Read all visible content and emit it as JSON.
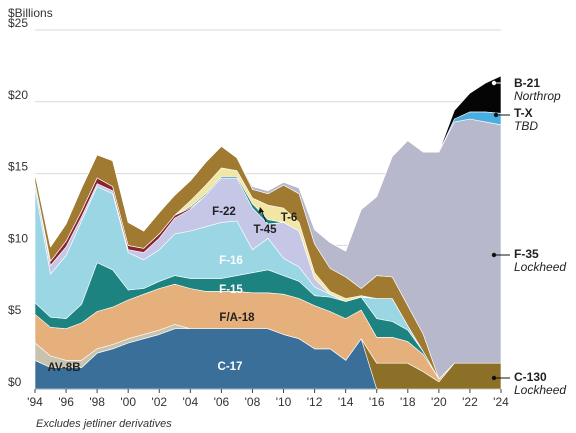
{
  "chart_data": {
    "type": "area",
    "stacked": true,
    "unit_label": "$Billions",
    "note": "Excludes jetliner derivatives",
    "ylim": [
      0,
      25
    ],
    "y_ticks": [
      "$0",
      "$5",
      "$10",
      "$15",
      "$20",
      "$25"
    ],
    "x_ticks": [
      "'94",
      "'96",
      "'98",
      "'00",
      "'02",
      "'04",
      "'06",
      "'08",
      "'10",
      "'12",
      "'14",
      "'16",
      "'18",
      "'20",
      "'22",
      "'24"
    ],
    "x_tick_years": [
      1994,
      1996,
      1998,
      2000,
      2002,
      2004,
      2006,
      2008,
      2010,
      2012,
      2014,
      2016,
      2018,
      2020,
      2022,
      2024
    ],
    "x": [
      1994,
      1995,
      1996,
      1997,
      1998,
      1999,
      2000,
      2001,
      2002,
      2003,
      2004,
      2005,
      2006,
      2007,
      2008,
      2009,
      2010,
      2011,
      2012,
      2013,
      2014,
      2015,
      2016,
      2017,
      2018,
      2019,
      2020,
      2021,
      2022,
      2023,
      2024
    ],
    "series": [
      {
        "name": "C-17",
        "color": "#3a6f9a",
        "values": [
          2.0,
          1.5,
          1.5,
          1.5,
          2.5,
          2.8,
          3.2,
          3.5,
          3.8,
          4.2,
          4.2,
          4.2,
          4.2,
          4.2,
          4.2,
          4.2,
          3.8,
          3.5,
          2.8,
          2.8,
          2.0,
          3.5,
          0,
          0,
          0,
          0,
          0,
          0,
          0,
          0,
          0
        ]
      },
      {
        "name": "C-130",
        "color": "#8c7028",
        "values": [
          0,
          0,
          0,
          0,
          0,
          0,
          0,
          0,
          0,
          0,
          0,
          0,
          0,
          0,
          0,
          0,
          0,
          0,
          0,
          0,
          0,
          0,
          1.8,
          1.8,
          1.8,
          1.2,
          0.5,
          1.8,
          1.8,
          1.8,
          1.8
        ]
      },
      {
        "name": "AV-8B",
        "color": "#c7c3ae",
        "values": [
          1.2,
          0.8,
          0.5,
          0.5,
          0.3,
          0.3,
          0.3,
          0.3,
          0.3,
          0.3,
          0,
          0,
          0,
          0,
          0,
          0,
          0,
          0,
          0,
          0,
          0,
          0,
          0,
          0,
          0,
          0,
          0,
          0,
          0,
          0,
          0
        ]
      },
      {
        "name": "F/A-18",
        "color": "#e6b07c",
        "values": [
          2.0,
          2.0,
          2.2,
          2.6,
          2.6,
          2.6,
          2.7,
          2.8,
          2.9,
          2.8,
          2.8,
          2.6,
          2.6,
          2.6,
          2.5,
          2.5,
          2.8,
          2.8,
          3.0,
          2.6,
          2.9,
          2.0,
          1.8,
          1.8,
          1.5,
          1.2,
          0.2,
          0,
          0,
          0,
          0
        ]
      },
      {
        "name": "F-15",
        "color": "#1c8380",
        "values": [
          0.8,
          0.7,
          0.7,
          1.3,
          3.4,
          2.6,
          0.7,
          0.4,
          0.5,
          0.6,
          0.7,
          0.9,
          0.9,
          1.1,
          1.4,
          1.6,
          1.3,
          1.2,
          0.7,
          1.0,
          1.2,
          0.9,
          1.3,
          1.1,
          0.8,
          0.2,
          0,
          0,
          0,
          0,
          0
        ]
      },
      {
        "name": "F-16",
        "color": "#9bd6e5",
        "values": [
          8.0,
          3.0,
          4.4,
          5.8,
          5.3,
          5.3,
          2.6,
          2.0,
          2.2,
          2.9,
          3.3,
          3.6,
          3.9,
          3.8,
          1.6,
          2.2,
          1.2,
          1.0,
          0.6,
          0.2,
          0,
          0,
          1.4,
          1.6,
          0.3,
          0,
          0,
          0,
          0,
          0,
          0
        ]
      },
      {
        "name": "F-22",
        "color": "#c6c7e6",
        "values": [
          0.4,
          0.6,
          0.6,
          0.3,
          0.2,
          0.2,
          0.2,
          0.5,
          0.8,
          1.1,
          1.5,
          2.2,
          3.1,
          3.0,
          2.9,
          1.0,
          2.5,
          2.5,
          0.6,
          0,
          0,
          0,
          0,
          0,
          0,
          0,
          0,
          0,
          0,
          0,
          0
        ]
      },
      {
        "name": "",
        "color": "#8b2330",
        "values": [
          0,
          0.3,
          0.4,
          0.4,
          0.4,
          0.3,
          0.3,
          0.3,
          0.3,
          0.2,
          0.1,
          0,
          0,
          0,
          0,
          0,
          0,
          0,
          0,
          0,
          0,
          0,
          0,
          0,
          0,
          0,
          0,
          0,
          0,
          0,
          0
        ]
      },
      {
        "name": "T-45",
        "color": "#1c8380",
        "values": [
          0,
          0,
          0,
          0,
          0,
          0,
          0,
          0,
          0,
          0,
          0.1,
          0.1,
          0.1,
          0.1,
          0.3,
          0.3,
          0,
          0,
          0,
          0,
          0,
          0,
          0,
          0,
          0,
          0,
          0,
          0,
          0,
          0,
          0
        ]
      },
      {
        "name": "T-6",
        "color": "#f2e6a4",
        "values": [
          0,
          0,
          0,
          0,
          0,
          0,
          0,
          0,
          0,
          0,
          0.4,
          0.6,
          0.6,
          0.4,
          0.4,
          1.0,
          1.0,
          0.6,
          0.4,
          0.2,
          0.2,
          0.1,
          0,
          0,
          0,
          0,
          0,
          0,
          0,
          0,
          0
        ]
      },
      {
        "name": "",
        "color": "#a07a30",
        "values": [
          0.6,
          1.0,
          1.2,
          1.6,
          1.6,
          1.8,
          1.6,
          1.2,
          1.5,
          1.4,
          1.4,
          1.6,
          1.5,
          0.9,
          0.6,
          0.8,
          1.6,
          2.0,
          2.0,
          1.6,
          1.5,
          0.5,
          1.6,
          1.5,
          1.4,
          1.2,
          0,
          0,
          0,
          0,
          0
        ]
      },
      {
        "name": "F-35",
        "color": "#b8b8cc",
        "values": [
          0,
          0,
          0,
          0,
          0,
          0,
          0,
          0,
          0,
          0,
          0,
          0,
          0,
          0,
          0.2,
          0.2,
          0.2,
          0.4,
          1.0,
          1.8,
          1.8,
          5.5,
          5.5,
          8.4,
          11.5,
          12.7,
          15.8,
          16.8,
          17.0,
          16.8,
          16.6
        ]
      },
      {
        "name": "T-X",
        "color": "#49aee0",
        "values": [
          0,
          0,
          0,
          0,
          0,
          0,
          0,
          0,
          0,
          0,
          0,
          0,
          0,
          0,
          0,
          0,
          0,
          0,
          0,
          0,
          0,
          0,
          0,
          0,
          0,
          0,
          0,
          0.2,
          0.5,
          0.7,
          0.8
        ]
      },
      {
        "name": "B-21",
        "color": "#050505",
        "values": [
          0,
          0,
          0,
          0,
          0,
          0,
          0,
          0,
          0,
          0,
          0,
          0,
          0,
          0,
          0,
          0,
          0,
          0,
          0,
          0,
          0,
          0,
          0,
          0,
          0,
          0,
          0,
          0.6,
          1.3,
          2.0,
          2.6
        ]
      }
    ],
    "inline_labels": [
      "C-17",
      "AV-8B",
      "F/A-18",
      "F-15",
      "F-16",
      "F-22",
      "T-45",
      "T-6"
    ],
    "right_labels": [
      {
        "name": "B-21",
        "maker": "Northrop"
      },
      {
        "name": "T-X",
        "maker": "TBD"
      },
      {
        "name": "F-35",
        "maker": "Lockheed"
      },
      {
        "name": "C-130",
        "maker": "Lockheed"
      }
    ]
  }
}
